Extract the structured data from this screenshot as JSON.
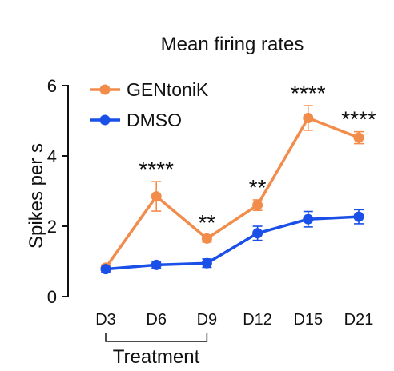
{
  "chart_data": {
    "type": "line",
    "title": "Mean firing rates",
    "ylabel": "Spikes per s",
    "xlabel": "",
    "categories": [
      "D3",
      "D6",
      "D9",
      "D12",
      "D15",
      "D21"
    ],
    "ylim": [
      0,
      6
    ],
    "yticks": [
      0,
      2,
      4,
      6
    ],
    "grid": false,
    "legend_position": "top-left",
    "series": [
      {
        "name": "GENtoniK",
        "color": "#f28c4b",
        "values": [
          0.82,
          2.85,
          1.65,
          2.6,
          5.08,
          4.52
        ],
        "errors": [
          0.08,
          0.42,
          0.1,
          0.15,
          0.35,
          0.17
        ]
      },
      {
        "name": "DMSO",
        "color": "#1a4fe8",
        "values": [
          0.78,
          0.9,
          0.95,
          1.8,
          2.2,
          2.27
        ],
        "errors": [
          0.1,
          0.1,
          0.12,
          0.2,
          0.22,
          0.2
        ]
      }
    ],
    "annotations": [
      "",
      "****",
      "**",
      "**",
      "****",
      "****"
    ],
    "bracket": {
      "from": "D3",
      "to": "D9",
      "label": "Treatment"
    }
  }
}
